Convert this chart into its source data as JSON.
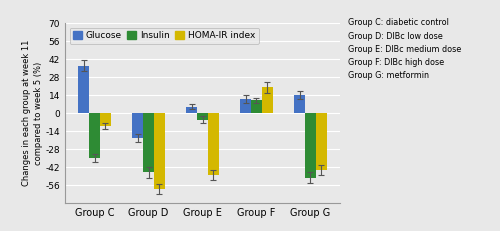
{
  "groups": [
    "Group C",
    "Group D",
    "Group E",
    "Group F",
    "Group G"
  ],
  "glucose_values": [
    37,
    -19,
    5,
    11,
    14
  ],
  "insulin_values": [
    -35,
    -46,
    -5,
    10,
    -50
  ],
  "homa_values": [
    -10,
    -59,
    -48,
    20,
    -44
  ],
  "glucose_errors": [
    4,
    3,
    2,
    3,
    3
  ],
  "insulin_errors": [
    3,
    4,
    3,
    2,
    4
  ],
  "homa_errors": [
    2,
    4,
    4,
    4,
    4
  ],
  "glucose_color": "#4472C4",
  "insulin_color": "#2E8B34",
  "homa_color": "#D4B800",
  "ylim": [
    -70,
    70
  ],
  "yticks": [
    -56,
    -42,
    -28,
    -14,
    0,
    14,
    28,
    42,
    56,
    70
  ],
  "ylabel": "Changes in each group at week 11\ncompared to week 5 (%)",
  "legend_labels": [
    "Glucose",
    "Insulin",
    "HOMA-IR index"
  ],
  "annotation_lines": [
    "Group C: diabetic control",
    "Group D: DIBc low dose",
    "Group E: DIBc medium dose",
    "Group F: DIBc high dose",
    "Group G: metformin"
  ],
  "bar_width": 0.2,
  "background_color": "#e8e8e8",
  "grid_color": "#ffffff",
  "figsize": [
    5.0,
    2.31
  ],
  "dpi": 100
}
